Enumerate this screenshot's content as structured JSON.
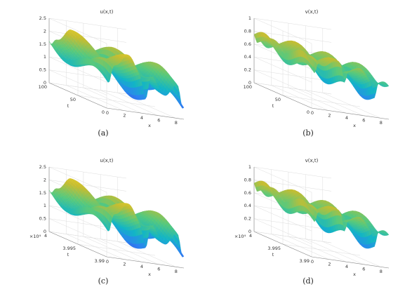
{
  "chart_data": [
    {
      "type": "surface",
      "title": "u(x,t)",
      "caption": "(a)",
      "xlabel": "x",
      "tlabel": "t",
      "xlim": [
        0,
        9
      ],
      "tlim": [
        0,
        100
      ],
      "zlim": [
        0,
        2.5
      ],
      "x_ticks": [
        "0",
        "2",
        "4",
        "6",
        "8"
      ],
      "t_ticks": [
        "0",
        "50",
        "100"
      ],
      "t_exponent": "",
      "z_ticks": [
        "0",
        "0.5",
        "1",
        "1.5",
        "2",
        "2.5"
      ],
      "surface_mode": "u",
      "colormap": [
        "#3e26a8",
        "#2e80f3",
        "#12b5c6",
        "#58c97c",
        "#c5bd32",
        "#fad624"
      ]
    },
    {
      "type": "surface",
      "title": "v(x,t)",
      "caption": "(b)",
      "xlabel": "x",
      "tlabel": "t",
      "xlim": [
        0,
        9
      ],
      "tlim": [
        0,
        100
      ],
      "zlim": [
        0,
        1
      ],
      "x_ticks": [
        "0",
        "2",
        "4",
        "6",
        "8"
      ],
      "t_ticks": [
        "0",
        "50",
        "100"
      ],
      "t_exponent": "",
      "z_ticks": [
        "0",
        "0.2",
        "0.4",
        "0.6",
        "0.8",
        "1"
      ],
      "surface_mode": "v",
      "colormap": [
        "#3e26a8",
        "#2e80f3",
        "#12b5c6",
        "#58c97c",
        "#c5bd32",
        "#fad624"
      ]
    },
    {
      "type": "surface",
      "title": "u(x,t)",
      "caption": "(c)",
      "xlabel": "x",
      "tlabel": "t",
      "xlim": [
        0,
        9
      ],
      "tlim": [
        3.99,
        4
      ],
      "zlim": [
        0,
        2.5
      ],
      "x_ticks": [
        "0",
        "2",
        "4",
        "6",
        "8"
      ],
      "t_ticks": [
        "3.99",
        "3.995",
        "4"
      ],
      "t_exponent": "×10⁴",
      "z_ticks": [
        "0",
        "0.5",
        "1",
        "1.5",
        "2",
        "2.5"
      ],
      "surface_mode": "u",
      "colormap": [
        "#3e26a8",
        "#2e80f3",
        "#12b5c6",
        "#58c97c",
        "#c5bd32",
        "#fad624"
      ]
    },
    {
      "type": "surface",
      "title": "v(x,t)",
      "caption": "(d)",
      "xlabel": "x",
      "tlabel": "t",
      "xlim": [
        0,
        9
      ],
      "tlim": [
        3.99,
        4
      ],
      "zlim": [
        0,
        1
      ],
      "x_ticks": [
        "0",
        "2",
        "4",
        "6",
        "8"
      ],
      "t_ticks": [
        "3.99",
        "3.995",
        "4"
      ],
      "t_exponent": "×10⁴",
      "z_ticks": [
        "0",
        "0.2",
        "0.4",
        "0.6",
        "0.8",
        "1"
      ],
      "surface_mode": "v",
      "colormap": [
        "#3e26a8",
        "#2e80f3",
        "#12b5c6",
        "#58c97c",
        "#c5bd32",
        "#fad624"
      ]
    }
  ]
}
